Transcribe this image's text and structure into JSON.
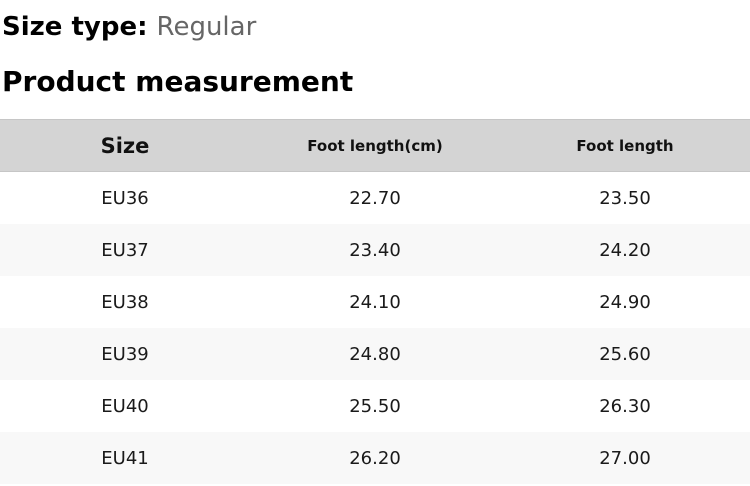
{
  "size_type": {
    "label": "Size type:",
    "value": "Regular"
  },
  "heading": "Product measurement",
  "table": {
    "columns": [
      "Size",
      "Foot length(cm)",
      "Foot length"
    ],
    "rows": [
      [
        "EU36",
        "22.70",
        "23.50"
      ],
      [
        "EU37",
        "23.40",
        "24.20"
      ],
      [
        "EU38",
        "24.10",
        "24.90"
      ],
      [
        "EU39",
        "24.80",
        "25.60"
      ],
      [
        "EU40",
        "25.50",
        "26.30"
      ],
      [
        "EU41",
        "26.20",
        "27.00"
      ]
    ]
  },
  "colors": {
    "header_bg": "#d4d4d4",
    "row_bg": "#ffffff",
    "row_alt_bg": "#f8f8f8",
    "text": "#000000",
    "muted_text": "#666666"
  }
}
